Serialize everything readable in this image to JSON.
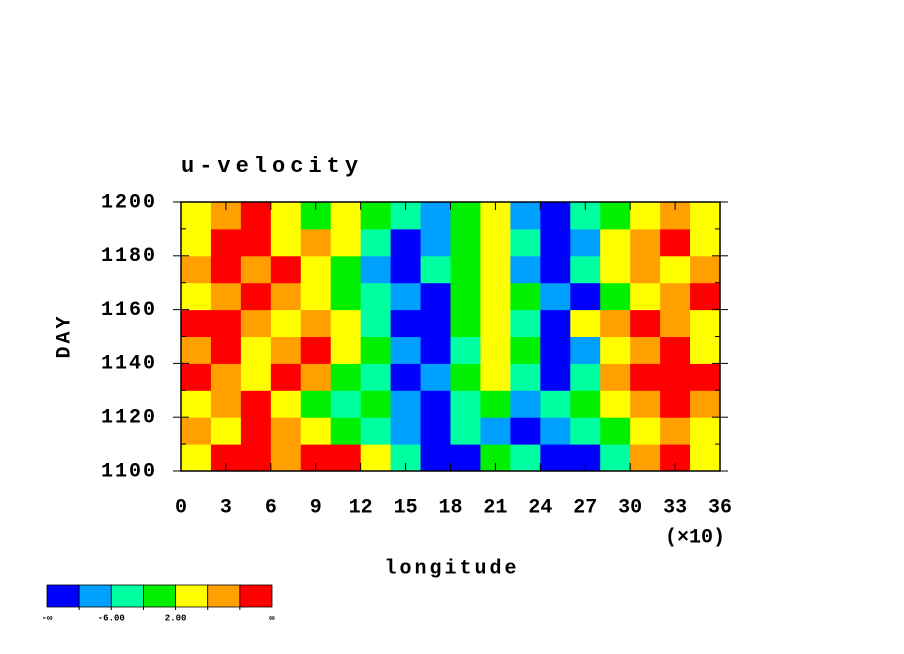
{
  "chart_data": {
    "type": "heatmap",
    "title": "u-velocity",
    "xlabel": "longitude",
    "ylabel": "DAY",
    "x_multiplier": "(×10)",
    "xlim": [
      0,
      360
    ],
    "ylim": [
      1100,
      1200
    ],
    "xticks": [
      {
        "value": 0,
        "label": "0"
      },
      {
        "value": 30,
        "label": "3"
      },
      {
        "value": 60,
        "label": "6"
      },
      {
        "value": 90,
        "label": "9"
      },
      {
        "value": 120,
        "label": "12"
      },
      {
        "value": 150,
        "label": "15"
      },
      {
        "value": 180,
        "label": "18"
      },
      {
        "value": 210,
        "label": "21"
      },
      {
        "value": 240,
        "label": "24"
      },
      {
        "value": 270,
        "label": "27"
      },
      {
        "value": 300,
        "label": "30"
      },
      {
        "value": 330,
        "label": "33"
      },
      {
        "value": 360,
        "label": "36"
      }
    ],
    "yticks": [
      1100,
      1120,
      1140,
      1160,
      1180,
      1200
    ],
    "yminorticks": [
      1110,
      1130,
      1150,
      1170,
      1190
    ],
    "x": [
      10,
      30,
      50,
      70,
      90,
      110,
      130,
      150,
      170,
      190,
      210,
      230,
      250,
      270,
      290,
      310,
      330,
      350
    ],
    "y": [
      1105,
      1115,
      1125,
      1135,
      1145,
      1155,
      1165,
      1175,
      1185,
      1195
    ],
    "z": [
      [
        4,
        12,
        12,
        8,
        12,
        12,
        4,
        -4,
        -12,
        -12,
        0,
        -4,
        -12,
        -12,
        -4,
        8,
        12,
        4
      ],
      [
        8,
        4,
        12,
        8,
        4,
        0,
        -4,
        -8,
        -12,
        -4,
        -8,
        -12,
        -8,
        -4,
        0,
        4,
        8,
        4
      ],
      [
        4,
        8,
        12,
        4,
        0,
        -4,
        0,
        -8,
        -12,
        -4,
        0,
        -8,
        -4,
        0,
        4,
        8,
        12,
        8
      ],
      [
        12,
        8,
        4,
        12,
        8,
        0,
        -4,
        -12,
        -8,
        0,
        4,
        -4,
        -12,
        -4,
        8,
        12,
        12,
        12
      ],
      [
        8,
        12,
        4,
        8,
        12,
        4,
        0,
        -8,
        -12,
        -4,
        4,
        0,
        -12,
        -8,
        4,
        8,
        12,
        4
      ],
      [
        12,
        12,
        8,
        4,
        8,
        4,
        -4,
        -12,
        -12,
        0,
        4,
        -4,
        -12,
        4,
        8,
        12,
        8,
        4
      ],
      [
        4,
        8,
        12,
        8,
        4,
        0,
        -4,
        -8,
        -12,
        0,
        4,
        0,
        -8,
        -12,
        0,
        4,
        8,
        12
      ],
      [
        8,
        12,
        8,
        12,
        4,
        0,
        -8,
        -12,
        -4,
        0,
        4,
        -8,
        -12,
        -4,
        4,
        8,
        4,
        8
      ],
      [
        4,
        12,
        12,
        4,
        8,
        4,
        -4,
        -12,
        -8,
        0,
        4,
        -4,
        -12,
        -8,
        4,
        8,
        12,
        4
      ],
      [
        4,
        8,
        12,
        4,
        0,
        4,
        0,
        -4,
        -8,
        0,
        4,
        -8,
        -12,
        -4,
        0,
        4,
        8,
        4
      ]
    ],
    "colorbar": {
      "colors": [
        "#0000ff",
        "#00a0ff",
        "#00ffa0",
        "#00f000",
        "#ffff00",
        "#ffa000",
        "#ff0000"
      ],
      "levels": [
        -10,
        -6,
        -2,
        2,
        6,
        10
      ],
      "level_labels": [
        null,
        "-6.00",
        null,
        "2.00",
        null,
        null
      ],
      "low_label": "-∞",
      "high_label": "∞"
    }
  }
}
